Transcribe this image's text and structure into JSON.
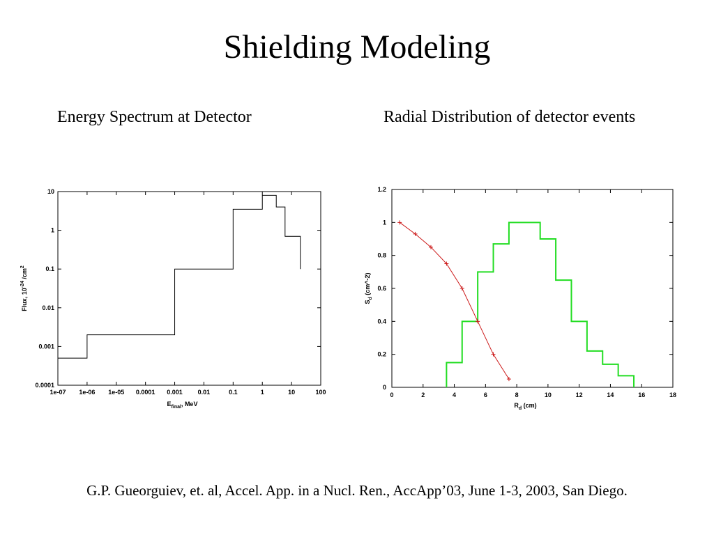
{
  "slide": {
    "title": "Shielding Modeling",
    "left_subtitle": "Energy Spectrum at Detector",
    "right_subtitle": "Radial Distribution of detector events",
    "citation": "G.P. Gueorguiev, et. al, Accel. App. in a Nucl. Ren., AccApp’03, June 1-3, 2003, San Diego."
  },
  "chart_data": [
    {
      "type": "line",
      "subtype": "step",
      "x_scale": "log",
      "y_scale": "log",
      "xlim": [
        1e-07,
        100
      ],
      "ylim": [
        0.0001,
        10
      ],
      "xlabel_main": "E",
      "xlabel_sub": "final",
      "xlabel_rest": ",  MeV",
      "ylabel_main": "Flux,  10",
      "ylabel_sup": "-24",
      "ylabel_rest": " /cm",
      "ylabel_sup2": "2",
      "x_ticks": [
        "1e-07",
        "1e-06",
        "1e-05",
        "0.0001",
        "0.001",
        "0.01",
        "0.1",
        "1",
        "10",
        "100"
      ],
      "y_ticks": [
        "0.0001",
        "0.001",
        "0.01",
        "0.1",
        "1",
        "10"
      ],
      "line_color": "#000000",
      "series": [
        {
          "edges": [
            1e-07,
            1e-06,
            0.001,
            0.1,
            1,
            3,
            6,
            20
          ],
          "values": [
            0.0005,
            0.002,
            0.1,
            3.5,
            8,
            4,
            0.7
          ]
        }
      ]
    },
    {
      "type": "line",
      "xlim": [
        0,
        18
      ],
      "ylim": [
        0,
        1.2
      ],
      "xlabel_main": "R",
      "xlabel_sub": "d",
      "xlabel_rest": " (cm)",
      "ylabel_main": "S",
      "ylabel_sub": "d",
      "ylabel_rest": " (cm^-2)",
      "x_ticks": [
        0,
        2,
        4,
        6,
        8,
        10,
        12,
        14,
        16,
        18
      ],
      "y_ticks": [
        0,
        0.2,
        0.4,
        0.6,
        0.8,
        1,
        1.2
      ],
      "series": [
        {
          "kind": "markers",
          "color": "#cc1a1a",
          "marker": "plus",
          "x": [
            0.5,
            1.5,
            2.5,
            3.5,
            4.5,
            5.5,
            6.5,
            7.5
          ],
          "y": [
            1.0,
            0.93,
            0.85,
            0.75,
            0.6,
            0.4,
            0.2,
            0.05
          ]
        },
        {
          "kind": "step",
          "color": "#22dd22",
          "edges": [
            3.5,
            4.5,
            5.5,
            6.5,
            7.5,
            9.5,
            10.5,
            11.5,
            12.5,
            13.5,
            14.5,
            15.5
          ],
          "values": [
            0.15,
            0.4,
            0.7,
            0.87,
            1.0,
            0.9,
            0.65,
            0.4,
            0.22,
            0.14,
            0.07
          ]
        }
      ]
    }
  ]
}
